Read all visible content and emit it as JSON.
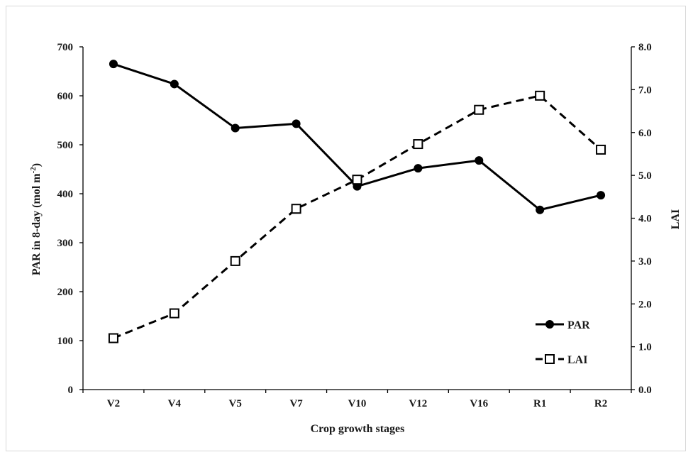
{
  "chart_data": {
    "type": "line",
    "categories": [
      "V2",
      "V4",
      "V5",
      "V7",
      "V10",
      "V12",
      "V16",
      "R1",
      "R2"
    ],
    "xlabel": "Crop growth stages",
    "ylabel_main": "PAR in 8-day (mol m",
    "ylabel_sup": "-2",
    "ylabel_end": ")",
    "y2label": "LAI",
    "ylim": [
      0,
      700
    ],
    "y_ticks": [
      "0",
      "100",
      "200",
      "300",
      "400",
      "500",
      "600",
      "700"
    ],
    "y2lim": [
      0,
      8
    ],
    "y2_ticks": [
      "0.0",
      "1.0",
      "2.0",
      "3.0",
      "4.0",
      "5.0",
      "6.0",
      "7.0",
      "8.0"
    ],
    "series": [
      {
        "name": "PAR",
        "axis": "left",
        "style": "solid",
        "marker": "filled-circle",
        "values": [
          665,
          624,
          534,
          543,
          415,
          452,
          468,
          367,
          397
        ]
      },
      {
        "name": "LAI",
        "axis": "right",
        "style": "dashed",
        "marker": "open-square",
        "values": [
          1.2,
          1.78,
          3.0,
          4.22,
          4.9,
          5.73,
          6.53,
          6.86,
          5.6
        ]
      }
    ],
    "legend_position": "bottom-right",
    "grid": false,
    "colors": {
      "line": "#000000",
      "text": "#1a1a1a",
      "frame": "#d9d9d9"
    }
  }
}
